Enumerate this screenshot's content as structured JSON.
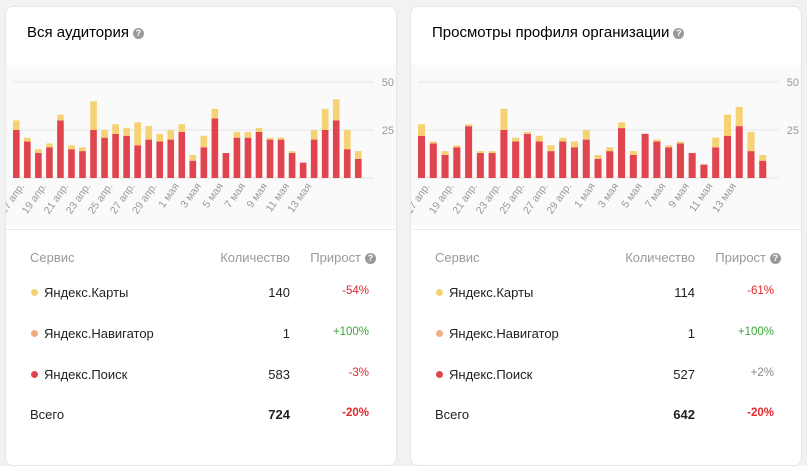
{
  "colors": {
    "yandex_maps": "#f5d273",
    "yandex_navigator": "#f0ad7e",
    "yandex_search": "#e0444f",
    "negative": "#e0272c",
    "positive": "#3aa635",
    "neutral": "#888888"
  },
  "table_headers": {
    "service": "Сервис",
    "quantity": "Количество",
    "growth": "Прирост"
  },
  "cards": [
    {
      "title": "Вся аудитория",
      "rows": [
        {
          "name": "Яндекс.Карты",
          "qty": "140",
          "growth": "-54%",
          "trend": "negative",
          "color": "yandex_maps"
        },
        {
          "name": "Яндекс.Навигатор",
          "qty": "1",
          "growth": "+100%",
          "trend": "positive",
          "color": "yandex_navigator"
        },
        {
          "name": "Яндекс.Поиск",
          "qty": "583",
          "growth": "-3%",
          "trend": "negative",
          "color": "yandex_search"
        }
      ],
      "total": {
        "name": "Всего",
        "qty": "724",
        "growth": "-20%"
      }
    },
    {
      "title": "Просмотры профиля организации",
      "rows": [
        {
          "name": "Яндекс.Карты",
          "qty": "114",
          "growth": "-61%",
          "trend": "negative",
          "color": "yandex_maps"
        },
        {
          "name": "Яндекс.Навигатор",
          "qty": "1",
          "growth": "+100%",
          "trend": "positive",
          "color": "yandex_navigator"
        },
        {
          "name": "Яндекс.Поиск",
          "qty": "527",
          "growth": "+2%",
          "trend": "neutral",
          "color": "yandex_search"
        }
      ],
      "total": {
        "name": "Всего",
        "qty": "642",
        "growth": "-20%"
      }
    }
  ],
  "chart_data": [
    {
      "type": "bar",
      "stacked": true,
      "ylim": [
        0,
        50
      ],
      "yticks": [
        "50",
        "25"
      ],
      "xticklabels": [
        "17 апр.",
        "19 апр.",
        "21 апр.",
        "23 апр.",
        "25 апр.",
        "27 апр.",
        "29 апр.",
        "1 мая",
        "3 мая",
        "5 мая",
        "7 мая",
        "9 мая",
        "11 мая",
        "13 мая"
      ],
      "series": [
        {
          "values": [
            25,
            19,
            13,
            16,
            30,
            15,
            14,
            25,
            21,
            23,
            22,
            17,
            20,
            19,
            20,
            24,
            9,
            16,
            31,
            13,
            21,
            21,
            24,
            20,
            20,
            13,
            8,
            20,
            25,
            30,
            15,
            10
          ]
        },
        {
          "values": [
            5,
            2,
            2,
            2,
            3,
            2,
            2,
            15,
            4,
            5,
            4,
            12,
            7,
            4,
            5,
            4,
            3,
            6,
            5,
            0,
            3,
            3,
            2,
            1,
            1,
            1,
            0,
            5,
            11,
            11,
            10,
            4
          ]
        }
      ]
    },
    {
      "type": "bar",
      "stacked": true,
      "ylim": [
        0,
        50
      ],
      "yticks": [
        "50",
        "25"
      ],
      "xticklabels": [
        "17 апр.",
        "19 апр.",
        "21 апр.",
        "23 апр.",
        "25 апр.",
        "27 апр.",
        "29 апр.",
        "1 мая",
        "3 мая",
        "5 мая",
        "7 мая",
        "9 мая",
        "11 мая",
        "13 мая"
      ],
      "series": [
        {
          "values": [
            22,
            18,
            12,
            16,
            27,
            13,
            13,
            25,
            19,
            23,
            19,
            14,
            19,
            16,
            20,
            10,
            14,
            26,
            12,
            23,
            19,
            16,
            18,
            13,
            7,
            16,
            22,
            27,
            14,
            9
          ]
        },
        {
          "values": [
            6,
            1,
            2,
            1,
            1,
            1,
            1,
            11,
            2,
            1,
            3,
            3,
            2,
            3,
            5,
            2,
            2,
            3,
            2,
            0,
            1,
            1,
            1,
            0,
            0,
            5,
            11,
            10,
            10,
            3
          ]
        }
      ]
    }
  ]
}
